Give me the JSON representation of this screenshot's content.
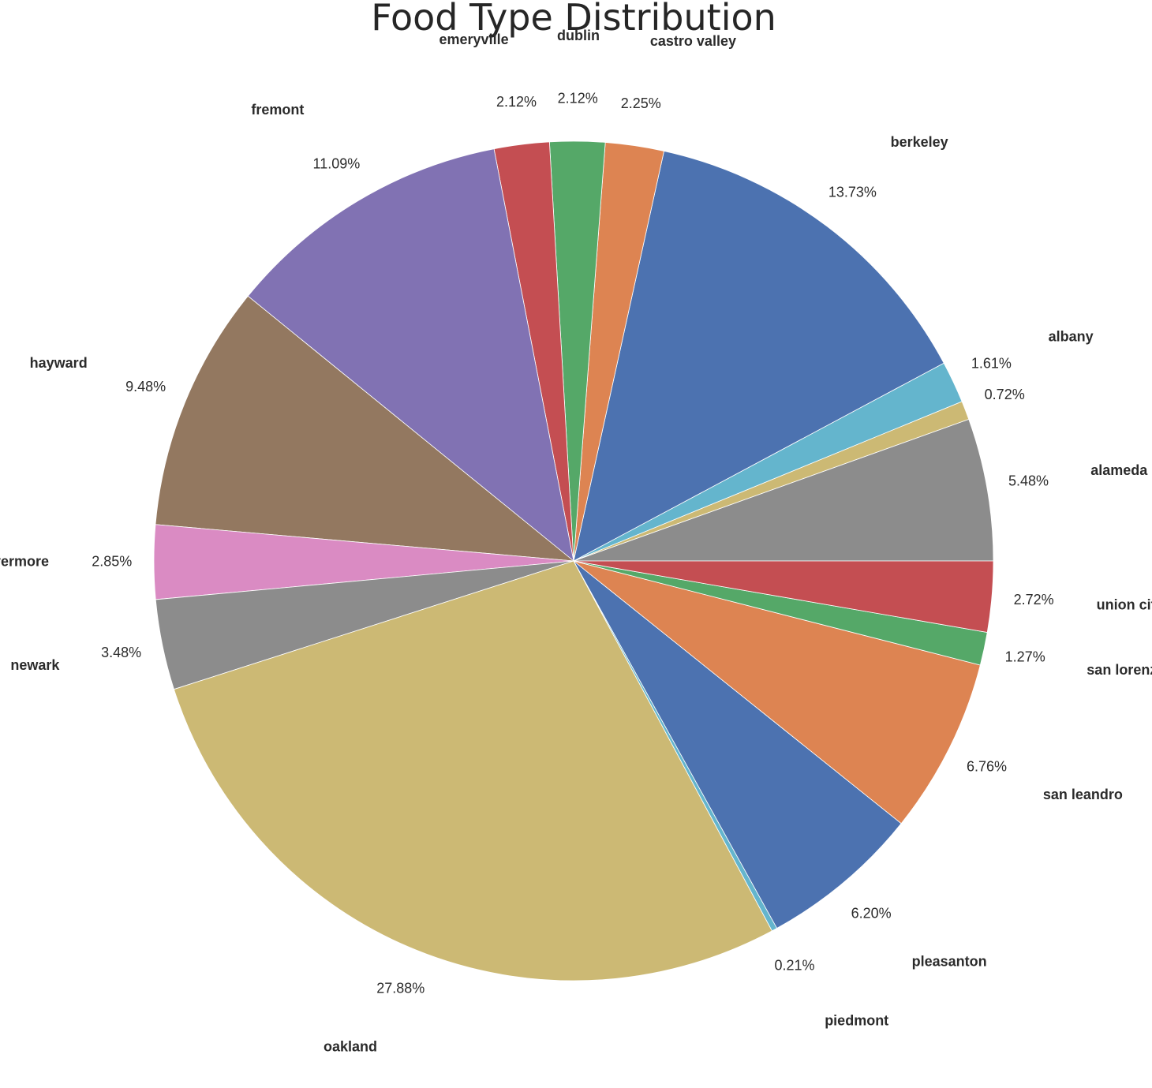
{
  "chart_data": {
    "type": "pie",
    "title": "Food Type Distribution",
    "start_angle_deg": 0,
    "direction": "counterclockwise",
    "slices": [
      {
        "label": "alameda",
        "pct_label": "5.48%",
        "value": 5.48,
        "color": "#8c8c8c"
      },
      {
        "label": "",
        "pct_label": "0.72%",
        "value": 0.72,
        "color": "#ccb974"
      },
      {
        "label": "albany",
        "pct_label": "1.61%",
        "value": 1.61,
        "color": "#64b5cd"
      },
      {
        "label": "berkeley",
        "pct_label": "13.73%",
        "value": 13.73,
        "color": "#4c72b0"
      },
      {
        "label": "castro valley",
        "pct_label": "2.25%",
        "value": 2.25,
        "color": "#dd8452"
      },
      {
        "label": "dublin",
        "pct_label": "2.12%",
        "value": 2.12,
        "color": "#55a868"
      },
      {
        "label": "emeryville",
        "pct_label": "2.12%",
        "value": 2.12,
        "color": "#c44e52"
      },
      {
        "label": "fremont",
        "pct_label": "11.09%",
        "value": 11.09,
        "color": "#8172b3"
      },
      {
        "label": "hayward",
        "pct_label": "9.48%",
        "value": 9.48,
        "color": "#937860"
      },
      {
        "label": "livermore",
        "pct_label": "2.85%",
        "value": 2.85,
        "color": "#da8bc3"
      },
      {
        "label": "newark",
        "pct_label": "3.48%",
        "value": 3.48,
        "color": "#8c8c8c"
      },
      {
        "label": "oakland",
        "pct_label": "27.88%",
        "value": 27.88,
        "color": "#ccb974"
      },
      {
        "label": "piedmont",
        "pct_label": "0.21%",
        "value": 0.21,
        "color": "#64b5cd"
      },
      {
        "label": "pleasanton",
        "pct_label": "6.20%",
        "value": 6.2,
        "color": "#4c72b0"
      },
      {
        "label": "san leandro",
        "pct_label": "6.76%",
        "value": 6.76,
        "color": "#dd8452"
      },
      {
        "label": "san lorenzo",
        "pct_label": "1.27%",
        "value": 1.27,
        "color": "#55a868"
      },
      {
        "label": "union city",
        "pct_label": "2.72%",
        "value": 2.72,
        "color": "#c44e52"
      }
    ]
  }
}
